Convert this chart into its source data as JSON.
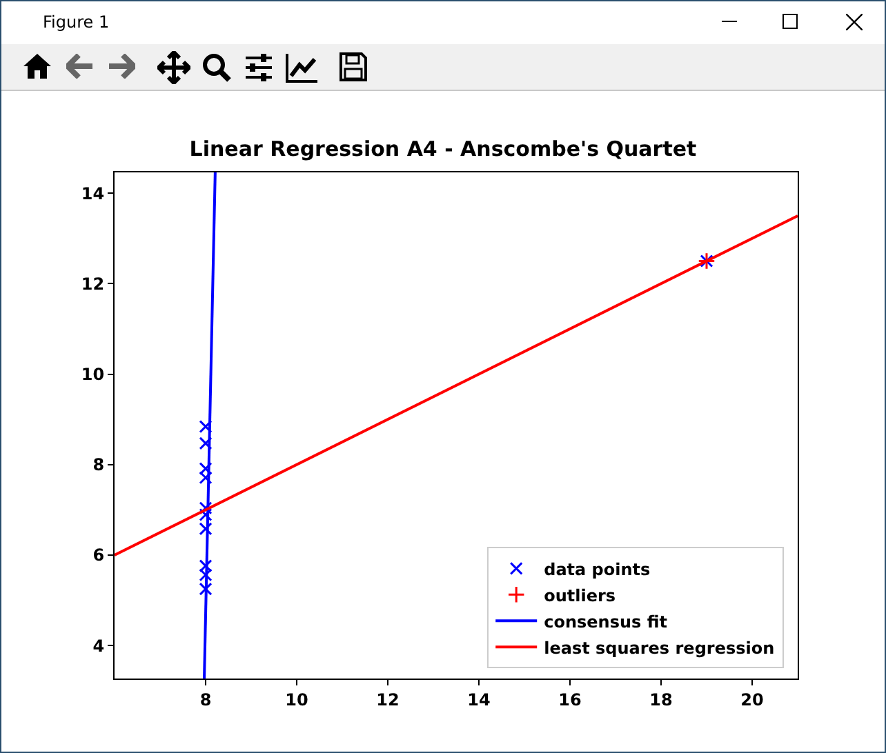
{
  "chart_data": {
    "type": "scatter",
    "title": "Linear Regression A4 - Anscombe's Quartet",
    "annotations": [
      "Figure 1"
    ],
    "xlim": [
      6,
      21
    ],
    "xticks": [
      8,
      10,
      12,
      14,
      16,
      18,
      20
    ],
    "ylim": [
      3.27,
      14.46
    ],
    "yticks": [
      4,
      6,
      8,
      10,
      12,
      14
    ],
    "grid": false,
    "legend": "bottom right",
    "series": [
      {
        "name": "data points",
        "marker": "x",
        "color": "#0000ff",
        "x": [
          8,
          8,
          8,
          8,
          8,
          8,
          8,
          19,
          8,
          8,
          8
        ],
        "values": [
          6.58,
          5.76,
          7.71,
          8.84,
          8.47,
          7.04,
          5.25,
          12.5,
          5.56,
          7.91,
          6.89
        ]
      },
      {
        "name": "outliers",
        "marker": "cross",
        "color": "#ff0000",
        "x": [
          19
        ],
        "values": [
          12.5
        ]
      },
      {
        "name": "consensus fit",
        "type": "line",
        "marker": "none",
        "color": "#0000ff",
        "x": [
          7.97,
          8.21
        ],
        "values": [
          3.27,
          14.46
        ]
      },
      {
        "name": "least squares regression",
        "type": "line",
        "marker": "none",
        "color": "#ff0000",
        "x": [
          6,
          21
        ],
        "values": [
          6.0,
          13.5
        ]
      }
    ]
  }
}
